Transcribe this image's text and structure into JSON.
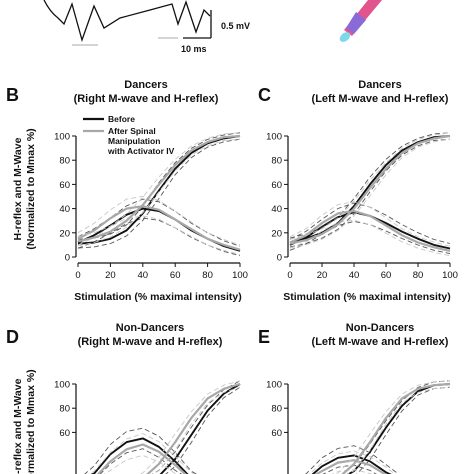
{
  "top_strip": {
    "scale_voltage": "0.5 mV",
    "scale_time": "10 ms"
  },
  "chart_data": [
    {
      "panel": "B",
      "type": "line",
      "title": "Dancers",
      "subtitle": "(Right M-wave and H-reflex)",
      "xlabel": "Stimulation (% maximal intensity)",
      "ylabel": "H-reflex and M-Wave\n(Normalized to Mmax %)",
      "xlim": [
        0,
        100
      ],
      "ylim": [
        0,
        100
      ],
      "xticks": [
        0,
        20,
        40,
        60,
        80,
        100
      ],
      "yticks": [
        0,
        20,
        40,
        60,
        80,
        100
      ],
      "legend": {
        "placement": "top-left",
        "entries": [
          "Before",
          "After Spinal Manipulation with Activator IV"
        ]
      },
      "series": [
        {
          "name": "Before",
          "color": "#111111",
          "x": [
            0,
            10,
            20,
            30,
            40,
            50,
            60,
            70,
            80,
            90,
            100
          ],
          "y": [
            12,
            18,
            26,
            35,
            40,
            38,
            31,
            22,
            15,
            9,
            5
          ]
        },
        {
          "name": "Before",
          "color": "#111111",
          "x": [
            0,
            10,
            20,
            30,
            40,
            50,
            60,
            70,
            80,
            90,
            100
          ],
          "y": [
            11,
            12,
            15,
            22,
            36,
            55,
            73,
            86,
            94,
            98,
            100
          ]
        },
        {
          "name": "After Spinal Manipulation with Activator IV",
          "color": "#a8a8a8",
          "x": [
            0,
            10,
            20,
            30,
            40,
            50,
            60,
            70,
            80,
            90,
            100
          ],
          "y": [
            15,
            22,
            32,
            40,
            42,
            39,
            31,
            23,
            15,
            10,
            6
          ]
        },
        {
          "name": "After Spinal Manipulation with Activator IV",
          "color": "#a8a8a8",
          "x": [
            0,
            10,
            20,
            30,
            40,
            50,
            60,
            70,
            80,
            90,
            100
          ],
          "y": [
            13,
            16,
            21,
            30,
            43,
            60,
            76,
            88,
            95,
            99,
            100
          ]
        }
      ]
    },
    {
      "panel": "C",
      "type": "line",
      "title": "Dancers",
      "subtitle": "(Left M-wave and H-reflex)",
      "xlabel": "Stimulation (% maximal intensity)",
      "xlim": [
        0,
        100
      ],
      "ylim": [
        0,
        100
      ],
      "xticks": [
        0,
        20,
        40,
        60,
        80,
        100
      ],
      "yticks": [
        0,
        20,
        40,
        60,
        80,
        100
      ],
      "series": [
        {
          "color": "#111111",
          "x": [
            0,
            10,
            20,
            30,
            40,
            50,
            60,
            70,
            80,
            90,
            100
          ],
          "y": [
            10,
            16,
            25,
            33,
            37,
            34,
            28,
            21,
            15,
            10,
            7
          ]
        },
        {
          "color": "#111111",
          "x": [
            0,
            10,
            20,
            30,
            40,
            50,
            60,
            70,
            80,
            90,
            100
          ],
          "y": [
            12,
            15,
            20,
            28,
            42,
            60,
            76,
            88,
            95,
            99,
            100
          ]
        },
        {
          "color": "#a8a8a8",
          "x": [
            0,
            10,
            20,
            30,
            40,
            50,
            60,
            70,
            80,
            90,
            100
          ],
          "y": [
            12,
            18,
            28,
            36,
            38,
            34,
            26,
            18,
            12,
            8,
            5
          ]
        },
        {
          "color": "#a8a8a8",
          "x": [
            0,
            10,
            20,
            30,
            40,
            50,
            60,
            70,
            80,
            90,
            100
          ],
          "y": [
            11,
            14,
            19,
            27,
            40,
            57,
            73,
            86,
            94,
            98,
            100
          ]
        }
      ]
    },
    {
      "panel": "D",
      "type": "line",
      "title": "Non-Dancers",
      "subtitle": "(Right M-wave and H-reflex)",
      "ylabel": "H-reflex and M-Wave\n(Normalized to Mmax %)",
      "ylim": [
        0,
        100
      ],
      "yticks": [
        100,
        80,
        60
      ],
      "series": [
        {
          "color": "#111111",
          "x": [
            0,
            10,
            20,
            30,
            40,
            50,
            60,
            70,
            80,
            90,
            100
          ],
          "y": [
            14,
            26,
            42,
            52,
            55,
            48,
            36,
            22,
            12,
            6,
            3
          ]
        },
        {
          "color": "#111111",
          "x": [
            0,
            10,
            20,
            30,
            40,
            50,
            60,
            70,
            80,
            90,
            100
          ],
          "y": [
            8,
            9,
            10,
            12,
            16,
            24,
            38,
            58,
            78,
            92,
            100
          ]
        },
        {
          "color": "#a8a8a8",
          "x": [
            0,
            10,
            20,
            30,
            40,
            50,
            60,
            70,
            80,
            90,
            100
          ],
          "y": [
            12,
            22,
            36,
            46,
            50,
            44,
            33,
            21,
            12,
            6,
            3
          ]
        },
        {
          "color": "#a8a8a8",
          "x": [
            0,
            10,
            20,
            30,
            40,
            50,
            60,
            70,
            80,
            90,
            100
          ],
          "y": [
            8,
            10,
            12,
            16,
            22,
            34,
            52,
            72,
            88,
            96,
            100
          ]
        }
      ]
    },
    {
      "panel": "E",
      "type": "line",
      "title": "Non-Dancers",
      "subtitle": "(Left M-wave and H-reflex)",
      "ylim": [
        0,
        100
      ],
      "yticks": [
        100,
        80,
        60
      ],
      "series": [
        {
          "color": "#111111",
          "x": [
            0,
            10,
            20,
            30,
            40,
            50,
            60,
            70,
            80,
            90,
            100
          ],
          "y": [
            10,
            20,
            32,
            39,
            41,
            36,
            27,
            18,
            10,
            5,
            3
          ]
        },
        {
          "color": "#111111",
          "x": [
            0,
            10,
            20,
            30,
            40,
            50,
            60,
            70,
            80,
            90,
            100
          ],
          "y": [
            8,
            10,
            13,
            18,
            28,
            44,
            64,
            82,
            94,
            99,
            100
          ]
        },
        {
          "color": "#a8a8a8",
          "x": [
            0,
            10,
            20,
            30,
            40,
            50,
            60,
            70,
            80,
            90,
            100
          ],
          "y": [
            10,
            18,
            28,
            35,
            37,
            33,
            25,
            16,
            9,
            5,
            3
          ]
        },
        {
          "color": "#a8a8a8",
          "x": [
            0,
            10,
            20,
            30,
            40,
            50,
            60,
            70,
            80,
            90,
            100
          ],
          "y": [
            9,
            11,
            15,
            22,
            34,
            52,
            72,
            88,
            96,
            99,
            100
          ]
        }
      ]
    }
  ]
}
